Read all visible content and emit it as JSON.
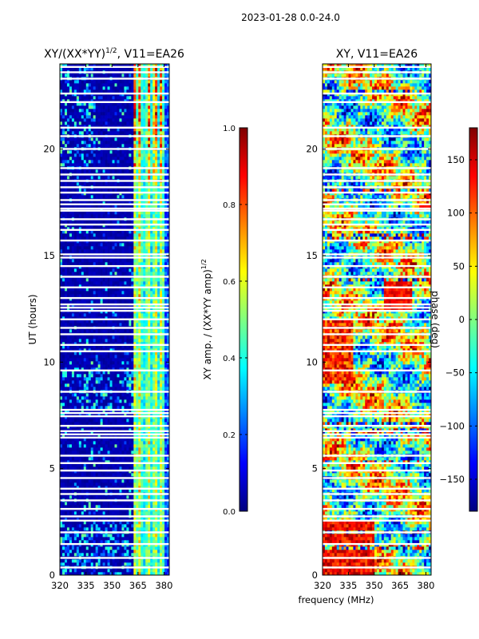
{
  "figure": {
    "suptitle": "2023-01-28 0.0-24.0",
    "shared_xlabel": "frequency (MHz)"
  },
  "colors": {
    "jet_stops": [
      "#00007f",
      "#0000ff",
      "#0080ff",
      "#00ffff",
      "#80ff80",
      "#ffff00",
      "#ff8000",
      "#ff0000",
      "#7f0000"
    ],
    "background": "#ffffff"
  },
  "chart_data": [
    {
      "type": "heatmap",
      "name": "amplitude-ratio",
      "title_main": "XY/(XX*YY)",
      "title_sup": "1/2",
      "title_rest": ", V11=EA26",
      "xlabel": "",
      "ylabel": "UT (hours)",
      "x_range": [
        320,
        383
      ],
      "y_range": [
        0,
        24
      ],
      "x_ticks": [
        320,
        335,
        350,
        365,
        380
      ],
      "x_tick_labels": [
        "320",
        "335",
        "350",
        "365",
        "380"
      ],
      "y_ticks": [
        0,
        5,
        10,
        15,
        20
      ],
      "y_tick_labels": [
        "0",
        "5",
        "10",
        "15",
        "20"
      ],
      "pattern": "low-ratio",
      "seed": 7,
      "colorbar": {
        "range": [
          0.0,
          1.0
        ],
        "ticks": [
          0.0,
          0.2,
          0.4,
          0.6,
          0.8,
          1.0
        ],
        "tick_labels": [
          "0.0",
          "0.2",
          "0.4",
          "0.6",
          "0.8",
          "1.0"
        ],
        "label_main": "XY amp. / (XX*YY amp)",
        "label_sup": "1/2"
      }
    },
    {
      "type": "heatmap",
      "name": "phase",
      "title_main": "XY, V11=EA26",
      "title_sup": "",
      "title_rest": "",
      "xlabel": "",
      "ylabel": "",
      "x_range": [
        320,
        383
      ],
      "y_range": [
        0,
        24
      ],
      "x_ticks": [
        320,
        335,
        350,
        365,
        380
      ],
      "x_tick_labels": [
        "320",
        "335",
        "350",
        "365",
        "380"
      ],
      "y_ticks": [
        0,
        5,
        10,
        15,
        20
      ],
      "y_tick_labels": [
        "0",
        "5",
        "10",
        "15",
        "20"
      ],
      "pattern": "phase",
      "seed": 13,
      "colorbar": {
        "range": [
          -180,
          180
        ],
        "ticks": [
          -150,
          -100,
          -50,
          0,
          50,
          100,
          150
        ],
        "tick_labels": [
          "−150",
          "−100",
          "−50",
          "0",
          "50",
          "100",
          "150"
        ],
        "label_main": "phase (deg)",
        "label_sup": ""
      }
    }
  ],
  "flagged_hour_rows": [
    0.35,
    0.8,
    1.45,
    2.0,
    2.55,
    2.75,
    3.1,
    3.5,
    3.8,
    4.05,
    4.55,
    4.9,
    5.25,
    5.6,
    6.45,
    6.6,
    6.75,
    7.0,
    7.45,
    7.6,
    7.75,
    8.6,
    9.6,
    10.5,
    10.8,
    11.3,
    11.6,
    12.0,
    12.4,
    12.55,
    12.7,
    13.0,
    13.5,
    14.0,
    14.5,
    14.9,
    15.05,
    15.7,
    16.2,
    16.45,
    16.7,
    17.1,
    17.2,
    17.4,
    17.6,
    17.95,
    18.2,
    18.5,
    18.8,
    19.1,
    20.0,
    20.6,
    21.0,
    22.2,
    22.6,
    23.3,
    23.6,
    23.85
  ],
  "strong_band_columns_MHz": [
    363.5,
    366.0,
    371.0,
    375.0,
    378.5
  ]
}
